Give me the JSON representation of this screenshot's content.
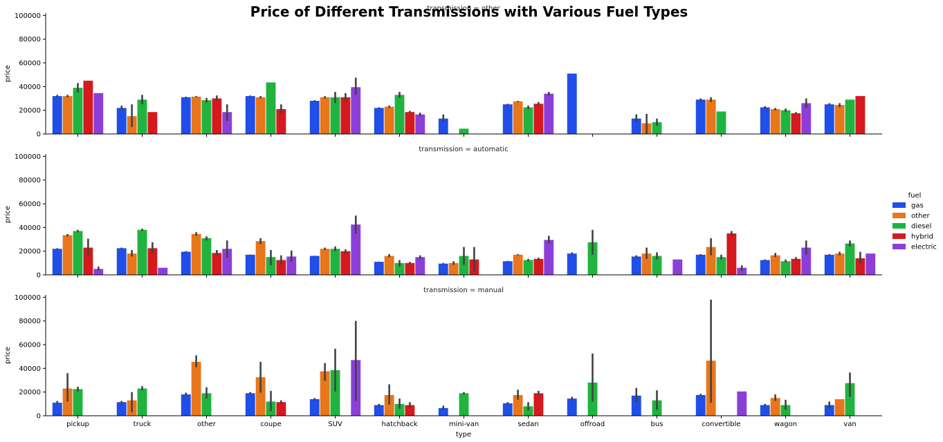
{
  "chart_data": {
    "type": "bar",
    "title": "Price of Different Transmissions with Various Fuel Types",
    "xlabel": "type",
    "ylabel": "price",
    "ylim": [
      0,
      102000
    ],
    "yticks": [
      0,
      20000,
      40000,
      60000,
      80000,
      100000
    ],
    "categories": [
      "pickup",
      "truck",
      "other",
      "coupe",
      "SUV",
      "hatchback",
      "mini-van",
      "sedan",
      "offroad",
      "bus",
      "convertible",
      "wagon",
      "van"
    ],
    "legend": {
      "title": "fuel",
      "position": "right",
      "entries": [
        "gas",
        "other",
        "diesel",
        "hybrid",
        "electric"
      ]
    },
    "colors": {
      "gas": "#1f4ee8",
      "other": "#e8761b",
      "diesel": "#21b33f",
      "hybrid": "#d5191f",
      "electric": "#8b3fd8",
      "errorbar": "#424242",
      "axis": "#000000"
    },
    "facets": [
      {
        "label": "transmission = other",
        "series": [
          {
            "name": "gas",
            "values": [
              32000,
              22000,
              31000,
              32000,
              28000,
              22000,
              13000,
              25000,
              51000,
              13000,
              29000,
              22500,
              25000
            ],
            "err_low": [
              31000,
              20000,
              30500,
              31500,
              27500,
              21500,
              10000,
              24500,
              null,
              10000,
              27500,
              21500,
              24000
            ],
            "err_high": [
              33000,
              24000,
              31500,
              32500,
              28500,
              22500,
              16500,
              25500,
              null,
              16500,
              30000,
              23500,
              26000
            ]
          },
          {
            "name": "other",
            "values": [
              32000,
              15000,
              31500,
              31000,
              31000,
              23000,
              null,
              27500,
              null,
              9000,
              29000,
              21000,
              24500
            ],
            "err_low": [
              31000,
              6000,
              31000,
              30000,
              30000,
              22000,
              null,
              27000,
              null,
              0,
              27000,
              20000,
              22500
            ],
            "err_high": [
              33000,
              25000,
              32000,
              32000,
              32000,
              24000,
              null,
              28000,
              null,
              17000,
              31000,
              22000,
              26000
            ]
          },
          {
            "name": "diesel",
            "values": [
              39000,
              29000,
              28500,
              43500,
              31000,
              33000,
              4500,
              22500,
              null,
              10000,
              19000,
              20000,
              29000
            ],
            "err_low": [
              35000,
              25000,
              26500,
              null,
              26000,
              30500,
              null,
              21000,
              null,
              7000,
              null,
              18500,
              null
            ],
            "err_high": [
              43000,
              33000,
              30500,
              null,
              35500,
              35500,
              null,
              24000,
              null,
              13000,
              null,
              21500,
              null
            ]
          },
          {
            "name": "hybrid",
            "values": [
              45000,
              18500,
              30000,
              21000,
              31000,
              18500,
              null,
              25500,
              null,
              null,
              null,
              17500,
              32000
            ],
            "err_low": [
              null,
              null,
              28000,
              17000,
              27000,
              17500,
              null,
              24000,
              null,
              null,
              null,
              17000,
              null
            ],
            "err_high": [
              null,
              null,
              32500,
              25000,
              34500,
              19500,
              null,
              27000,
              null,
              null,
              null,
              18500,
              null
            ]
          },
          {
            "name": "electric",
            "values": [
              34500,
              null,
              18500,
              null,
              39500,
              16500,
              null,
              34000,
              null,
              null,
              null,
              26000,
              null
            ],
            "err_low": [
              null,
              null,
              11000,
              null,
              33000,
              15000,
              null,
              32500,
              null,
              null,
              null,
              22000,
              null
            ],
            "err_high": [
              null,
              null,
              25000,
              null,
              47500,
              18000,
              null,
              35500,
              null,
              null,
              null,
              30000,
              null
            ]
          }
        ]
      },
      {
        "label": "transmission = automatic",
        "series": [
          {
            "name": "gas",
            "values": [
              22000,
              22500,
              19500,
              17000,
              16000,
              11000,
              9500,
              11500,
              18000,
              15500,
              17000,
              12500,
              17000
            ],
            "err_low": [
              21500,
              22000,
              19000,
              16800,
              15800,
              10800,
              9000,
              11200,
              17000,
              14500,
              16500,
              12000,
              16500
            ],
            "err_high": [
              22500,
              23000,
              20000,
              17200,
              16200,
              11200,
              10000,
              11800,
              19000,
              16500,
              17500,
              13000,
              17500
            ]
          },
          {
            "name": "other",
            "values": [
              33500,
              18000,
              34500,
              28500,
              22000,
              16000,
              10000,
              17000,
              null,
              18000,
              23500,
              16500,
              18000
            ],
            "err_low": [
              32500,
              15500,
              33000,
              26000,
              21000,
              15000,
              8500,
              16500,
              null,
              13500,
              16500,
              15000,
              16500
            ],
            "err_high": [
              34500,
              21000,
              36000,
              31000,
              23000,
              17500,
              11500,
              17500,
              null,
              23000,
              31000,
              18500,
              19500
            ]
          },
          {
            "name": "diesel",
            "values": [
              37000,
              38000,
              31000,
              15000,
              22000,
              10000,
              16000,
              12500,
              27500,
              16000,
              15000,
              11500,
              26500
            ],
            "err_low": [
              36000,
              37000,
              29000,
              8000,
              20000,
              7000,
              8500,
              11500,
              17000,
              13000,
              13000,
              10500,
              24000
            ],
            "err_high": [
              38000,
              39000,
              32500,
              21000,
              24000,
              12500,
              23500,
              13500,
              38000,
              19000,
              17000,
              13000,
              29000
            ]
          },
          {
            "name": "hybrid",
            "values": [
              23000,
              22500,
              18500,
              12500,
              20000,
              10000,
              13000,
              13500,
              null,
              null,
              35000,
              13500,
              14000
            ],
            "err_low": [
              15500,
              18000,
              16500,
              8500,
              18000,
              9000,
              2500,
              12500,
              null,
              null,
              33000,
              12500,
              8500
            ],
            "err_high": [
              30500,
              27500,
              21000,
              16500,
              21500,
              11000,
              23500,
              14500,
              null,
              null,
              37000,
              15000,
              19500
            ]
          },
          {
            "name": "electric",
            "values": [
              5000,
              6000,
              22000,
              15500,
              42500,
              15000,
              null,
              29500,
              null,
              13000,
              6000,
              23000,
              18000
            ],
            "err_low": [
              3500,
              null,
              14500,
              11000,
              34500,
              13500,
              null,
              26500,
              null,
              null,
              3500,
              17000,
              null
            ],
            "err_high": [
              7000,
              null,
              29000,
              20500,
              50000,
              16500,
              null,
              33000,
              null,
              null,
              8000,
              29000,
              null
            ]
          }
        ]
      },
      {
        "label": "transmission = manual",
        "series": [
          {
            "name": "gas",
            "values": [
              11000,
              11500,
              18000,
              19000,
              14000,
              9000,
              6500,
              10500,
              14500,
              17000,
              17500,
              9000,
              9000
            ],
            "err_low": [
              10000,
              10500,
              16500,
              18000,
              13000,
              8000,
              5000,
              9500,
              13000,
              11000,
              16500,
              8000,
              6000
            ],
            "err_high": [
              12500,
              12500,
              19500,
              20000,
              15000,
              10000,
              8500,
              11500,
              16000,
              23500,
              18500,
              10000,
              12000
            ]
          },
          {
            "name": "other",
            "values": [
              23000,
              13000,
              45500,
              32500,
              37500,
              17500,
              null,
              17500,
              null,
              null,
              46500,
              15000,
              14000
            ],
            "err_low": [
              12000,
              3000,
              41000,
              19500,
              29500,
              9500,
              null,
              13500,
              null,
              null,
              11000,
              12500,
              null
            ],
            "err_high": [
              36000,
              20000,
              51000,
              45500,
              44500,
              26500,
              null,
              22000,
              null,
              null,
              98000,
              18000,
              null
            ]
          },
          {
            "name": "diesel",
            "values": [
              22500,
              23000,
              19000,
              12000,
              38500,
              10000,
              19000,
              8000,
              28000,
              13000,
              null,
              9000,
              27500
            ],
            "err_low": [
              20500,
              21500,
              14500,
              4000,
              20500,
              6000,
              18000,
              4500,
              12000,
              5000,
              null,
              5000,
              16000
            ],
            "err_high": [
              24500,
              25000,
              24000,
              21000,
              56500,
              14500,
              20000,
              11500,
              52500,
              21500,
              null,
              13500,
              36500
            ]
          },
          {
            "name": "hybrid",
            "values": [
              null,
              null,
              null,
              11500,
              null,
              9000,
              null,
              19000,
              null,
              null,
              null,
              null,
              null
            ],
            "err_low": [
              null,
              null,
              null,
              10000,
              null,
              6500,
              null,
              17500,
              null,
              null,
              null,
              null,
              null
            ],
            "err_high": [
              null,
              null,
              null,
              13000,
              null,
              11500,
              null,
              21000,
              null,
              null,
              null,
              null,
              null
            ]
          },
          {
            "name": "electric",
            "values": [
              null,
              null,
              null,
              null,
              47000,
              null,
              null,
              null,
              null,
              null,
              20500,
              null,
              null
            ],
            "err_low": [
              null,
              null,
              null,
              null,
              12500,
              null,
              null,
              null,
              null,
              null,
              null,
              null,
              null
            ],
            "err_high": [
              null,
              null,
              null,
              null,
              80000,
              null,
              null,
              null,
              null,
              null,
              null,
              null,
              null
            ]
          }
        ]
      }
    ]
  }
}
